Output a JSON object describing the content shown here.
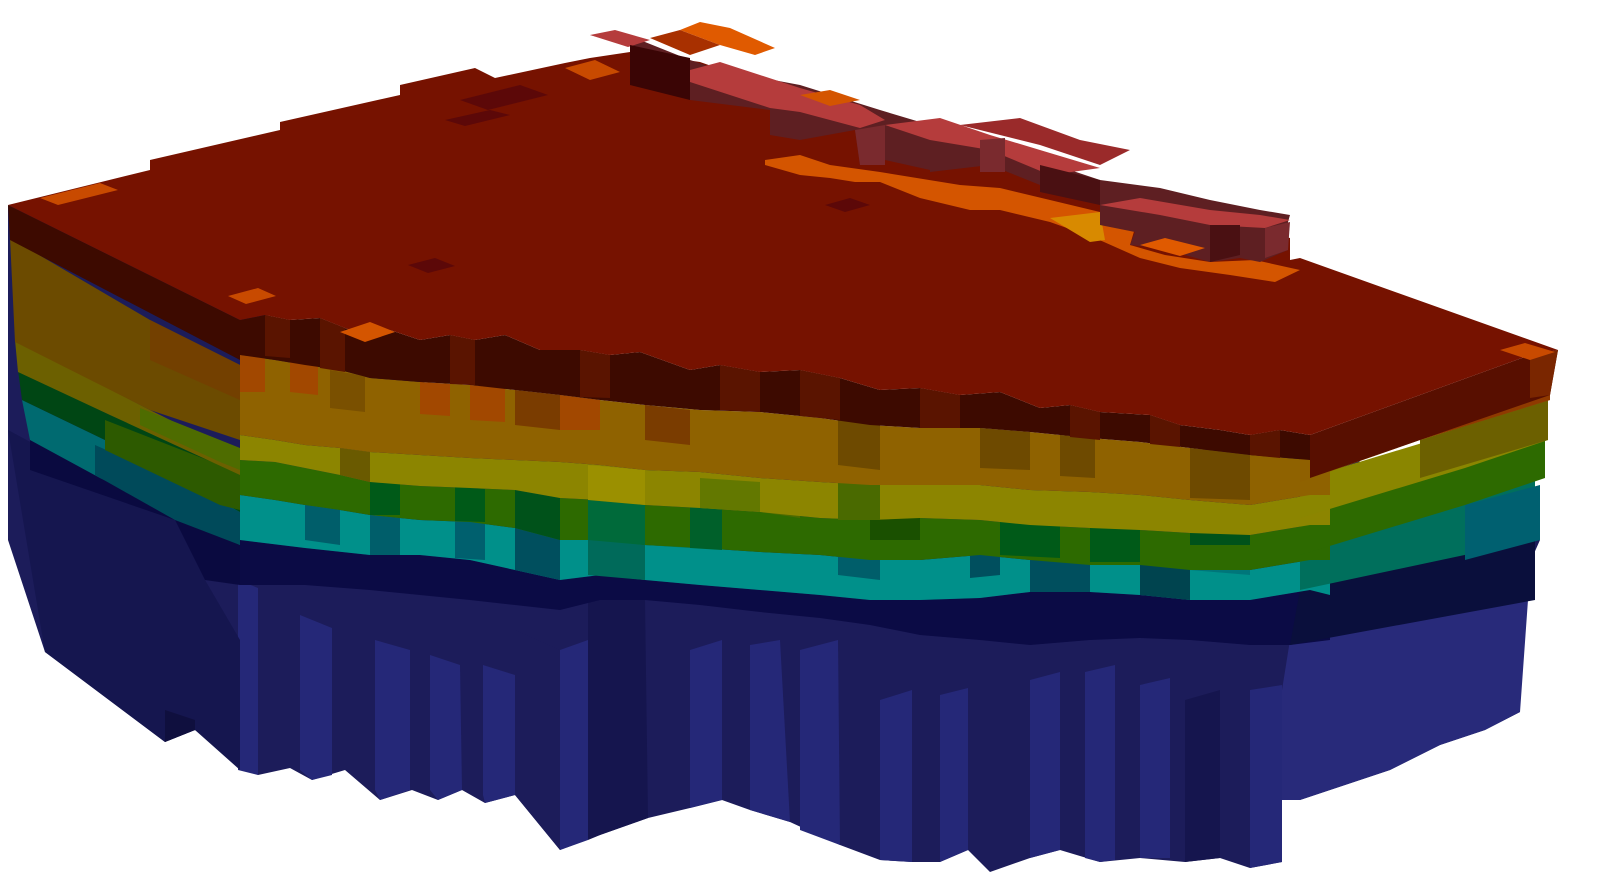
{
  "scene": {
    "kind": "voxel-block-model",
    "background": "#ffffff",
    "top_surface_color": "#761200",
    "strata": [
      {
        "layer": 1,
        "front_color": "#3d0a00",
        "side_color": "#4c0d02"
      },
      {
        "layer": 2,
        "front_color": "#6b4b00",
        "side_color": "#8f3a00"
      },
      {
        "layer": 3,
        "front_color": "#9b8200",
        "side_color": "#8c8500"
      },
      {
        "layer": 4,
        "front_color": "#005a18",
        "side_color": "#2d6a00"
      },
      {
        "layer": 5,
        "front_color": "#009088",
        "side_color": "#006070"
      },
      {
        "layer": 6,
        "front_color": "#0a0a46",
        "side_color": "#08123f"
      },
      {
        "layer": 7,
        "front_color": "#1b1b5c",
        "side_color": "#252878"
      }
    ],
    "ridge_colors": [
      "#b53c3c",
      "#5e1f22",
      "#3a0505",
      "#e05a00",
      "#d88a00"
    ]
  }
}
